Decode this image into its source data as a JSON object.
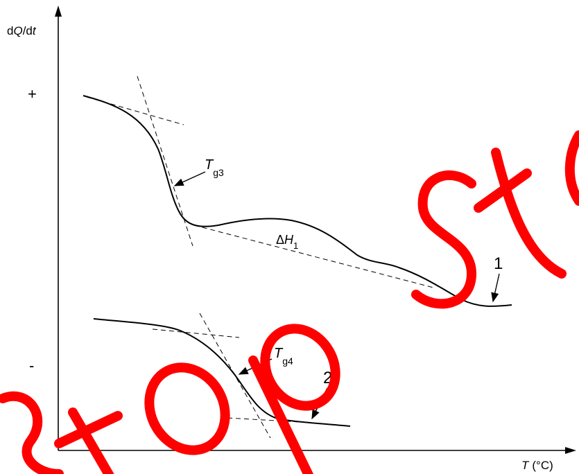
{
  "axes": {
    "y_label_d": "d",
    "y_label_Q": "Q",
    "y_label_slash_d": "/d",
    "y_label_t": "t",
    "x_label_T": "T",
    "x_label_unit": "(°C)",
    "plus_sign": "+",
    "minus_sign": "-"
  },
  "annotations": {
    "tg3_T": "T",
    "tg3_sub": "g3",
    "tg4_T": "T",
    "tg4_sub": "g4",
    "dh_delta": "Δ",
    "dh_H": "H",
    "dh_sub": "1",
    "curve1_label": "1",
    "curve2_label": "2"
  },
  "watermark": {
    "text": "stop st",
    "color": "#ff0000"
  },
  "colors": {
    "curve": "#000000",
    "tangent": "#000000",
    "background": "#ffffff"
  }
}
